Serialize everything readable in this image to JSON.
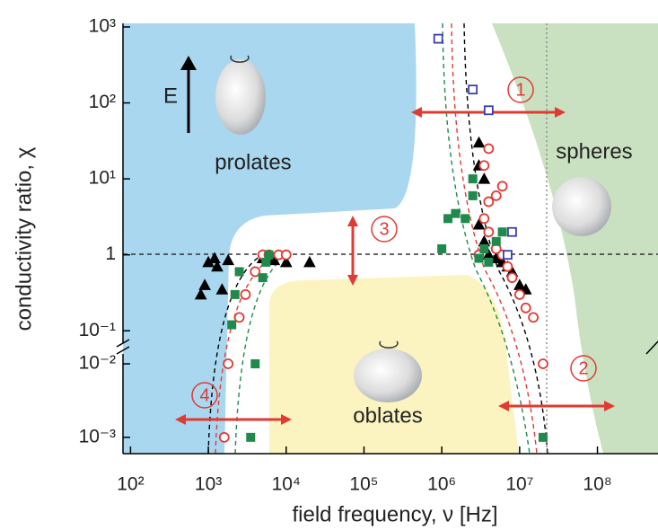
{
  "chart_data": {
    "type": "scatter",
    "x_label": "field frequency, ν [Hz]",
    "y_label": "conductivity ratio, χ",
    "log_x": true,
    "log_y": true,
    "xlim": [
      80,
      600000000
    ],
    "xticks": [
      {
        "value": 100,
        "label": "10²"
      },
      {
        "value": 1000,
        "label": "10³"
      },
      {
        "value": 10000,
        "label": "10⁴"
      },
      {
        "value": 100000,
        "label": "10⁵"
      },
      {
        "value": 1000000,
        "label": "10⁶"
      },
      {
        "value": 10000000,
        "label": "10⁷"
      },
      {
        "value": 100000000,
        "label": "10⁸"
      }
    ],
    "y_segments": [
      {
        "ylim": [
          0.06,
          1100
        ],
        "yticks": [
          {
            "value": 0.1,
            "label": "10⁻¹"
          },
          1,
          {
            "value": 10,
            "label": "10¹"
          },
          {
            "value": 100,
            "label": "10²"
          },
          {
            "value": 1000,
            "label": "10³"
          }
        ]
      },
      {
        "ylim": [
          0.0006,
          0.015
        ],
        "yticks": [
          {
            "value": 0.001,
            "label": "10⁻³"
          },
          {
            "value": 0.01,
            "label": "10⁻²"
          }
        ]
      }
    ],
    "annotations": {
      "prolates": "prolates",
      "spheres": "spheres",
      "oblates": "oblates",
      "field": "E",
      "n1": "1",
      "n2": "2",
      "n3": "3",
      "n4": "4"
    },
    "series": [
      {
        "marker": "triangle",
        "filled": true,
        "color": "#000000",
        "x": [
          800,
          900,
          1000,
          1200,
          1300,
          1500,
          1800,
          5000,
          7000,
          10000,
          20000,
          3000000,
          3000000,
          3500000,
          3000000,
          3500000,
          4000000,
          5000000,
          6000000,
          7000000,
          8000000,
          10000000,
          12000000
        ],
        "values": [
          0.3,
          0.4,
          0.8,
          0.9,
          0.7,
          0.35,
          0.85,
          0.9,
          0.85,
          0.8,
          0.8,
          30,
          15,
          10,
          2.5,
          1.5,
          1,
          0.9,
          0.8,
          0.7,
          0.6,
          0.4,
          0.35
        ]
      },
      {
        "marker": "circle",
        "filled": false,
        "color": "#e03a33",
        "x": [
          1800,
          1600,
          2500,
          3000,
          4000,
          5000,
          6000,
          8000,
          10000,
          20000000,
          15000000,
          12000000,
          10000000,
          8000000,
          7000000,
          6000000,
          5000000,
          4000000,
          3500000,
          4000000,
          5000000,
          6000000,
          3500000,
          4000000,
          3000000
        ],
        "values": [
          0.01,
          0.001,
          0.15,
          0.3,
          0.6,
          1,
          1,
          1,
          1,
          0.01,
          0.15,
          0.2,
          0.3,
          0.5,
          0.7,
          1,
          1.2,
          2,
          3,
          5,
          6,
          8,
          15,
          25,
          1
        ]
      },
      {
        "marker": "square",
        "filled": true,
        "color": "#1f8a4c",
        "x": [
          3500,
          4000,
          2000,
          2200,
          2500,
          5000,
          5500,
          6000,
          1000000,
          1200000,
          1500000,
          2000000,
          2500000,
          2500000,
          3000000,
          3500000,
          4000000,
          5000000,
          6000000,
          20000000
        ],
        "values": [
          0.001,
          0.01,
          0.12,
          0.3,
          0.6,
          0.5,
          0.8,
          1,
          1.2,
          3,
          3.5,
          3,
          6,
          10,
          0.9,
          1.2,
          0.8,
          1.5,
          2,
          0.001
        ]
      },
      {
        "marker": "square",
        "filled": false,
        "color": "#3b3fa8",
        "x": [
          900000,
          2500000,
          4000000,
          8000000,
          7000000
        ],
        "values": [
          700,
          150,
          80,
          2,
          1
        ]
      }
    ]
  }
}
